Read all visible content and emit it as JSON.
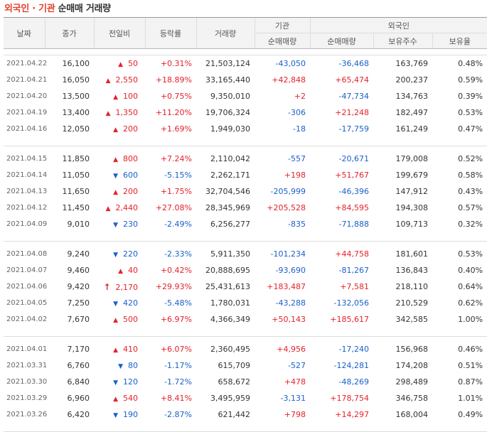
{
  "title": {
    "part1": "외국인 · 기관",
    "part2": " 순매매 거래량"
  },
  "headers": {
    "date": "날짜",
    "close": "종가",
    "change": "전일비",
    "rate": "등락률",
    "volume": "거래량",
    "inst": "기관",
    "foreign": "외국인",
    "inst_net": "순매매량",
    "for_net": "순매매량",
    "for_hold": "보유주수",
    "for_ratio": "보유율"
  },
  "colors": {
    "up": "#e4222b",
    "down": "#1a5fcc",
    "accent": "#e4422b"
  },
  "rows": [
    {
      "date": "2021.04.22",
      "close": "16,100",
      "dir": "up",
      "change": "50",
      "rate": "+0.31%",
      "volume": "21,503,124",
      "inst": "-43,050",
      "foreign": "-36,468",
      "holdings": "163,769",
      "ratio": "0.48%"
    },
    {
      "date": "2021.04.21",
      "close": "16,050",
      "dir": "up",
      "change": "2,550",
      "rate": "+18.89%",
      "volume": "33,165,440",
      "inst": "+42,848",
      "foreign": "+65,474",
      "holdings": "200,237",
      "ratio": "0.59%"
    },
    {
      "date": "2021.04.20",
      "close": "13,500",
      "dir": "up",
      "change": "100",
      "rate": "+0.75%",
      "volume": "9,350,010",
      "inst": "+2",
      "foreign": "-47,734",
      "holdings": "134,763",
      "ratio": "0.39%"
    },
    {
      "date": "2021.04.19",
      "close": "13,400",
      "dir": "up",
      "change": "1,350",
      "rate": "+11.20%",
      "volume": "19,706,324",
      "inst": "-306",
      "foreign": "+21,248",
      "holdings": "182,497",
      "ratio": "0.53%"
    },
    {
      "date": "2021.04.16",
      "close": "12,050",
      "dir": "up",
      "change": "200",
      "rate": "+1.69%",
      "volume": "1,949,030",
      "inst": "-18",
      "foreign": "-17,759",
      "holdings": "161,249",
      "ratio": "0.47%"
    },
    {
      "date": "2021.04.15",
      "close": "11,850",
      "dir": "up",
      "change": "800",
      "rate": "+7.24%",
      "volume": "2,110,042",
      "inst": "-557",
      "foreign": "-20,671",
      "holdings": "179,008",
      "ratio": "0.52%"
    },
    {
      "date": "2021.04.14",
      "close": "11,050",
      "dir": "down",
      "change": "600",
      "rate": "-5.15%",
      "volume": "2,262,171",
      "inst": "+198",
      "foreign": "+51,767",
      "holdings": "199,679",
      "ratio": "0.58%"
    },
    {
      "date": "2021.04.13",
      "close": "11,650",
      "dir": "up",
      "change": "200",
      "rate": "+1.75%",
      "volume": "32,704,546",
      "inst": "-205,999",
      "foreign": "-46,396",
      "holdings": "147,912",
      "ratio": "0.43%"
    },
    {
      "date": "2021.04.12",
      "close": "11,450",
      "dir": "up",
      "change": "2,440",
      "rate": "+27.08%",
      "volume": "28,345,969",
      "inst": "+205,528",
      "foreign": "+84,595",
      "holdings": "194,308",
      "ratio": "0.57%"
    },
    {
      "date": "2021.04.09",
      "close": "9,010",
      "dir": "down",
      "change": "230",
      "rate": "-2.49%",
      "volume": "6,256,277",
      "inst": "-835",
      "foreign": "-71,888",
      "holdings": "109,713",
      "ratio": "0.32%"
    },
    {
      "date": "2021.04.08",
      "close": "9,240",
      "dir": "down",
      "change": "220",
      "rate": "-2.33%",
      "volume": "5,911,350",
      "inst": "-101,234",
      "foreign": "+44,758",
      "holdings": "181,601",
      "ratio": "0.53%"
    },
    {
      "date": "2021.04.07",
      "close": "9,460",
      "dir": "up",
      "change": "40",
      "rate": "+0.42%",
      "volume": "20,888,695",
      "inst": "-93,690",
      "foreign": "-81,267",
      "holdings": "136,843",
      "ratio": "0.40%"
    },
    {
      "date": "2021.04.06",
      "close": "9,420",
      "dir": "limit",
      "change": "2,170",
      "rate": "+29.93%",
      "volume": "25,431,613",
      "inst": "+183,487",
      "foreign": "+7,581",
      "holdings": "218,110",
      "ratio": "0.64%"
    },
    {
      "date": "2021.04.05",
      "close": "7,250",
      "dir": "down",
      "change": "420",
      "rate": "-5.48%",
      "volume": "1,780,031",
      "inst": "-43,288",
      "foreign": "-132,056",
      "holdings": "210,529",
      "ratio": "0.62%"
    },
    {
      "date": "2021.04.02",
      "close": "7,670",
      "dir": "up",
      "change": "500",
      "rate": "+6.97%",
      "volume": "4,366,349",
      "inst": "+50,143",
      "foreign": "+185,617",
      "holdings": "342,585",
      "ratio": "1.00%"
    },
    {
      "date": "2021.04.01",
      "close": "7,170",
      "dir": "up",
      "change": "410",
      "rate": "+6.07%",
      "volume": "2,360,495",
      "inst": "+4,956",
      "foreign": "-17,240",
      "holdings": "156,968",
      "ratio": "0.46%"
    },
    {
      "date": "2021.03.31",
      "close": "6,760",
      "dir": "down",
      "change": "80",
      "rate": "-1.17%",
      "volume": "615,709",
      "inst": "-527",
      "foreign": "-124,281",
      "holdings": "174,208",
      "ratio": "0.51%"
    },
    {
      "date": "2021.03.30",
      "close": "6,840",
      "dir": "down",
      "change": "120",
      "rate": "-1.72%",
      "volume": "658,672",
      "inst": "+478",
      "foreign": "-48,269",
      "holdings": "298,489",
      "ratio": "0.87%"
    },
    {
      "date": "2021.03.29",
      "close": "6,960",
      "dir": "up",
      "change": "540",
      "rate": "+8.41%",
      "volume": "3,495,959",
      "inst": "-3,131",
      "foreign": "+178,754",
      "holdings": "346,758",
      "ratio": "1.01%"
    },
    {
      "date": "2021.03.26",
      "close": "6,420",
      "dir": "down",
      "change": "190",
      "rate": "-2.87%",
      "volume": "621,442",
      "inst": "+798",
      "foreign": "+14,297",
      "holdings": "168,004",
      "ratio": "0.49%"
    }
  ]
}
